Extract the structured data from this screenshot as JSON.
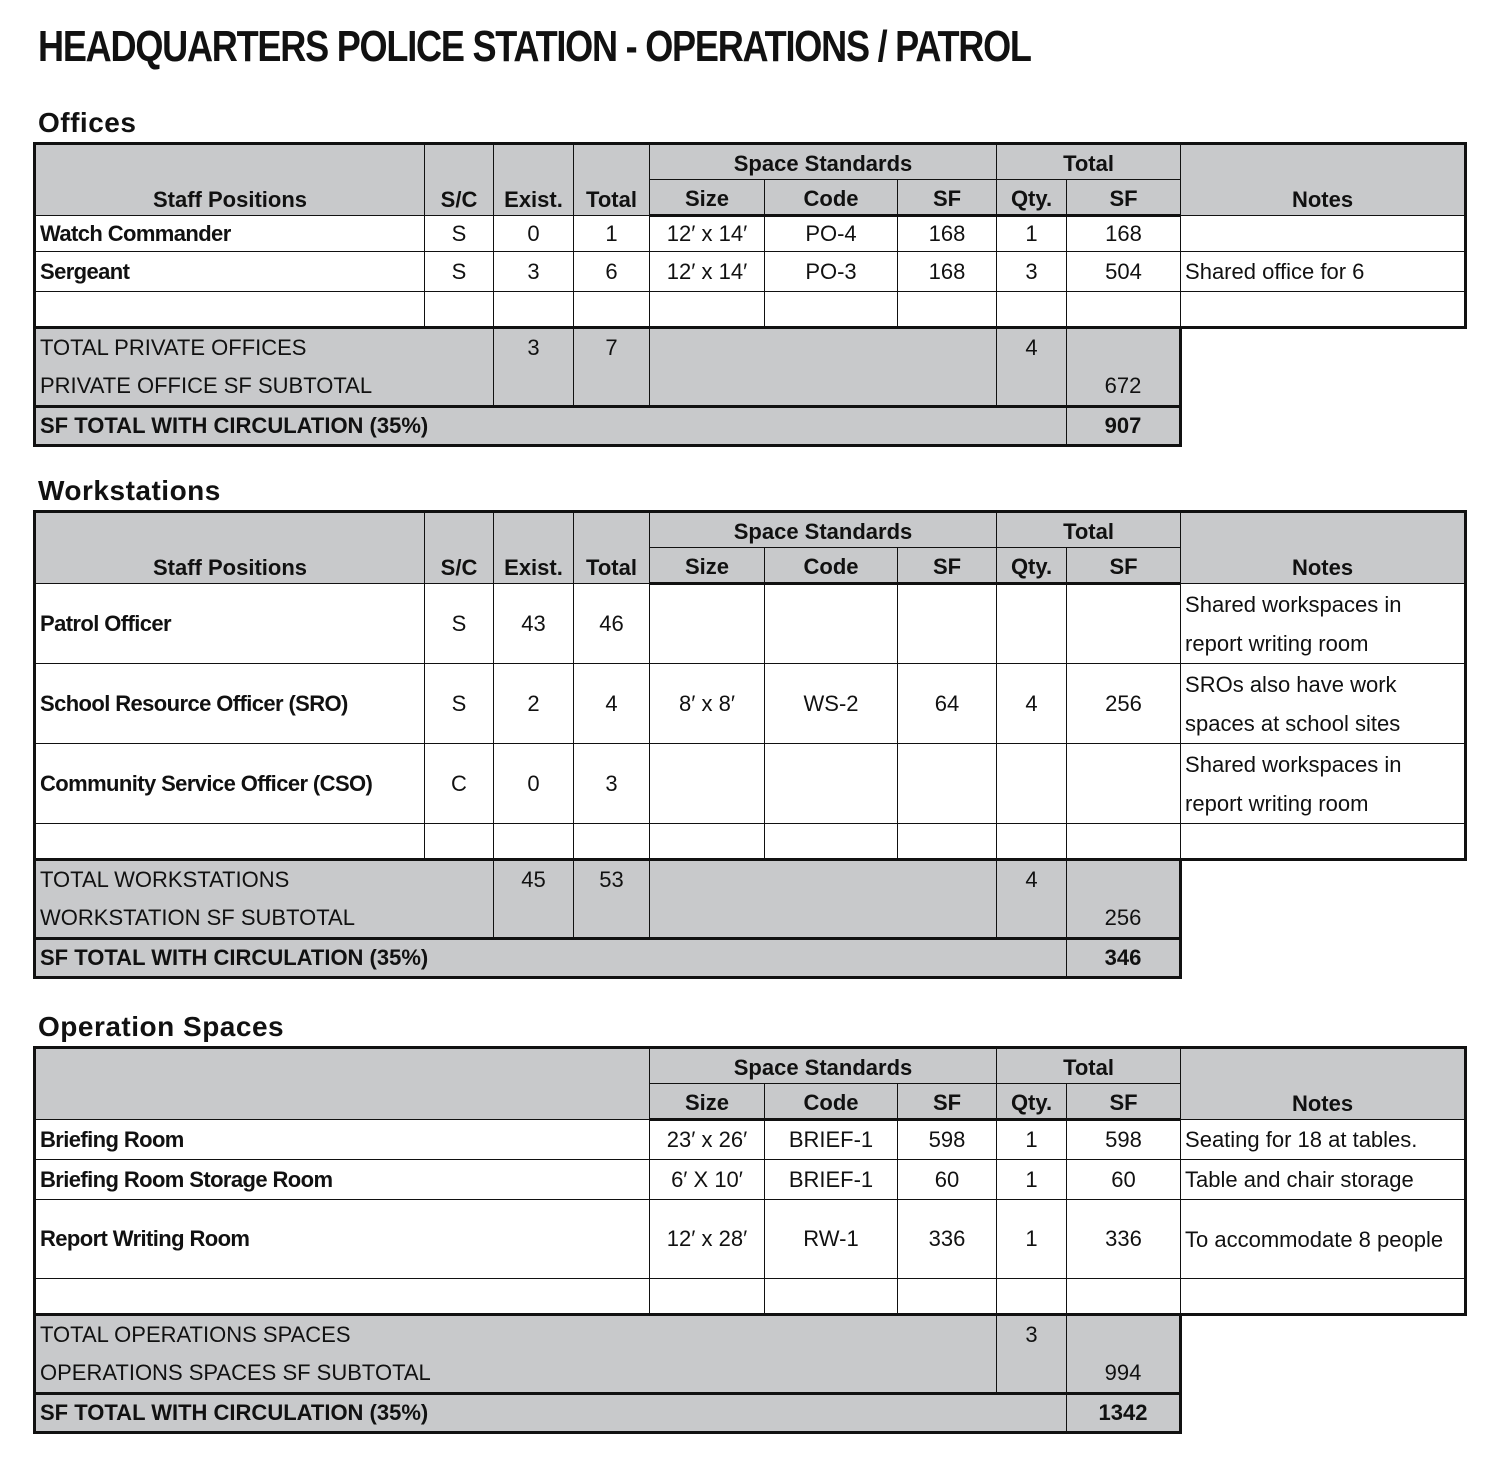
{
  "title": "HEADQUARTERS POLICE STATION - OPERATIONS / PATROL",
  "header": {
    "staff": "Staff Positions",
    "sc": "S/C",
    "exist": "Exist.",
    "total": "Total",
    "space_standards": "Space Standards",
    "size": "Size",
    "code": "Code",
    "sf": "SF",
    "total_group": "Total",
    "qty": "Qty.",
    "total_sf": "SF",
    "notes": "Notes"
  },
  "offices": {
    "heading": "Offices",
    "rows": [
      {
        "position": "Watch Commander",
        "sc": "S",
        "exist": "0",
        "total": "1",
        "size": "12′ x 14′",
        "code": "PO-4",
        "sf": "168",
        "qty": "1",
        "total_sf": "168",
        "notes": ""
      },
      {
        "position": "Sergeant",
        "sc": "S",
        "exist": "3",
        "total": "6",
        "size": "12′ x 14′",
        "code": "PO-3",
        "sf": "168",
        "qty": "3",
        "total_sf": "504",
        "notes": "Shared office for 6"
      },
      {
        "position": "",
        "sc": "",
        "exist": "",
        "total": "",
        "size": "",
        "code": "",
        "sf": "",
        "qty": "",
        "total_sf": "",
        "notes": ""
      }
    ],
    "summary": {
      "count_label": "TOTAL PRIVATE OFFICES",
      "exist": "3",
      "total": "7",
      "qty": "4",
      "subtotal_label": "PRIVATE OFFICE SF SUBTOTAL",
      "subtotal_sf": "672",
      "circulation_label": "SF TOTAL WITH CIRCULATION (35%)",
      "circulation_sf": "907"
    }
  },
  "workstations": {
    "heading": "Workstations",
    "rows": [
      {
        "position": "Patrol Officer",
        "sc": "S",
        "exist": "43",
        "total": "46",
        "size": "",
        "code": "",
        "sf": "",
        "qty": "",
        "total_sf": "",
        "notes": "Shared workspaces in report writing room"
      },
      {
        "position": "School Resource Officer (SRO)",
        "sc": "S",
        "exist": "2",
        "total": "4",
        "size": "8′ x 8′",
        "code": "WS-2",
        "sf": "64",
        "qty": "4",
        "total_sf": "256",
        "notes": "SROs also have work spaces at school sites"
      },
      {
        "position": "Community Service Officer (CSO)",
        "sc": "C",
        "exist": "0",
        "total": "3",
        "size": "",
        "code": "",
        "sf": "",
        "qty": "",
        "total_sf": "",
        "notes": "Shared workspaces in report writing room"
      },
      {
        "position": "",
        "sc": "",
        "exist": "",
        "total": "",
        "size": "",
        "code": "",
        "sf": "",
        "qty": "",
        "total_sf": "",
        "notes": ""
      }
    ],
    "summary": {
      "count_label": "TOTAL WORKSTATIONS",
      "exist": "45",
      "total": "53",
      "qty": "4",
      "subtotal_label": "WORKSTATION SF SUBTOTAL",
      "subtotal_sf": "256",
      "circulation_label": "SF TOTAL WITH CIRCULATION (35%)",
      "circulation_sf": "346"
    }
  },
  "operations": {
    "heading": "Operation Spaces",
    "rows": [
      {
        "position": "Briefing Room",
        "size": "23′ x 26′",
        "code": "BRIEF-1",
        "sf": "598",
        "qty": "1",
        "total_sf": "598",
        "notes": "Seating for 18 at tables."
      },
      {
        "position": "Briefing Room Storage Room",
        "size": "6′ X 10′",
        "code": "BRIEF-1",
        "sf": "60",
        "qty": "1",
        "total_sf": "60",
        "notes": "Table and chair storage"
      },
      {
        "position": "Report Writing Room",
        "size": "12′ x 28′",
        "code": "RW-1",
        "sf": "336",
        "qty": "1",
        "total_sf": "336",
        "notes": "To accommodate 8 people"
      },
      {
        "position": "",
        "size": "",
        "code": "",
        "sf": "",
        "qty": "",
        "total_sf": "",
        "notes": ""
      }
    ],
    "summary": {
      "count_label": "TOTAL OPERATIONS SPACES",
      "qty": "3",
      "subtotal_label": "OPERATIONS SPACES SF SUBTOTAL",
      "subtotal_sf": "994",
      "circulation_label": "SF TOTAL WITH CIRCULATION (35%)",
      "circulation_sf": "1342"
    }
  }
}
